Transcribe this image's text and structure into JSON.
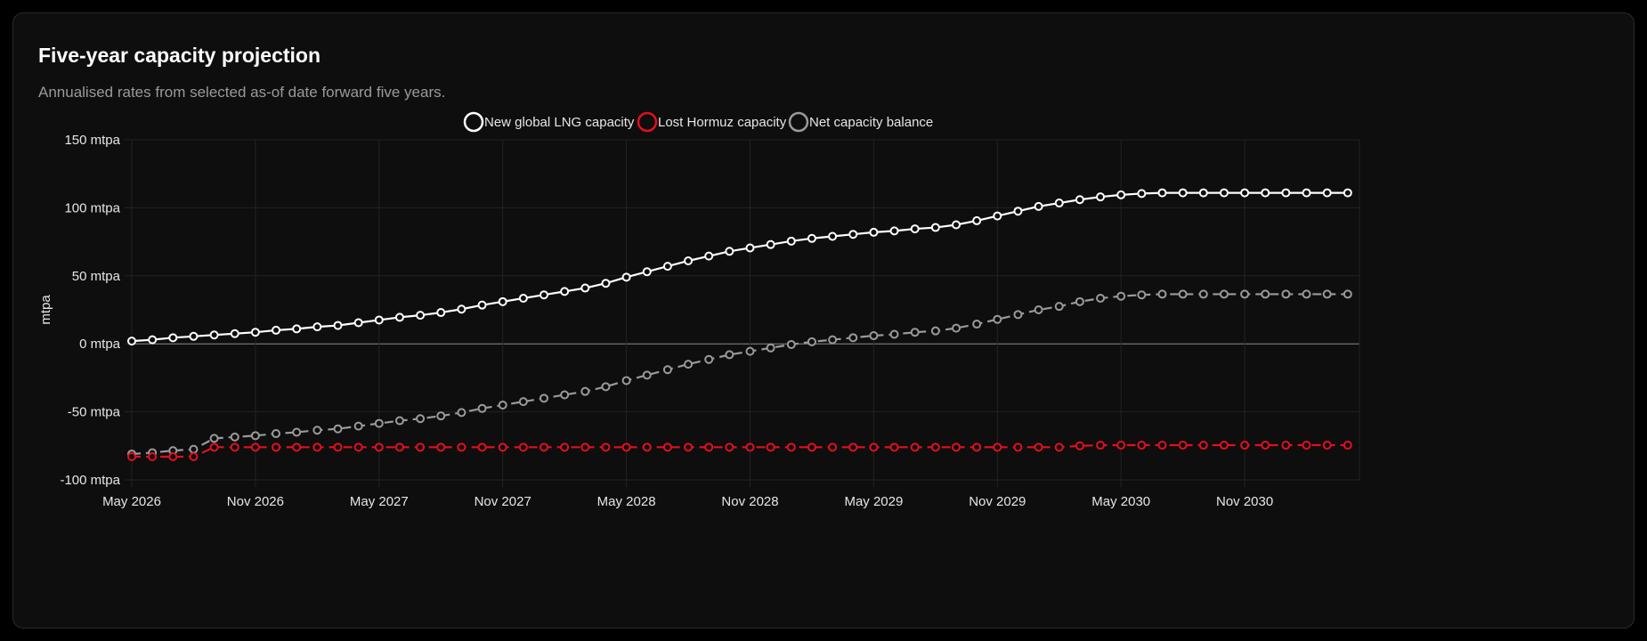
{
  "card": {
    "title": "Five-year capacity projection",
    "subtitle": "Annualised rates from selected as-of date forward five years."
  },
  "colors": {
    "background": "#0e0e0e",
    "grid": "#232323",
    "zero_line": "#8a8a8a",
    "text": "#e6e6e6",
    "new_capacity": "#ffffff",
    "lost_hormuz": "#e0101e",
    "net_balance": "#9a9a9a"
  },
  "chart_data": {
    "type": "line",
    "ylabel": "mtpa",
    "ylim": [
      -100,
      150
    ],
    "yticks": [
      150,
      100,
      50,
      0,
      -50,
      -100
    ],
    "y_unit": "mtpa",
    "x_tick_labels": [
      "May 2026",
      "Nov 2026",
      "May 2027",
      "Nov 2027",
      "May 2028",
      "Nov 2028",
      "May 2029",
      "Nov 2029",
      "May 2030",
      "Nov 2030"
    ],
    "x_tick_month_index": [
      0,
      6,
      12,
      18,
      24,
      30,
      36,
      42,
      48,
      54
    ],
    "x_range_months": [
      0,
      59
    ],
    "legend_position": "top-center",
    "series": [
      {
        "name": "New global LNG capacity",
        "color_key": "new_capacity",
        "dashed": false,
        "values": [
          2,
          3,
          4.5,
          5.5,
          6.5,
          7.5,
          8.5,
          10,
          11,
          12.5,
          13.5,
          15.5,
          17.5,
          19.5,
          21,
          23,
          25.5,
          28.5,
          31,
          33.5,
          36,
          38.5,
          41,
          44.5,
          49,
          53,
          57,
          61,
          64.5,
          68,
          70.5,
          73,
          75.5,
          77.5,
          79,
          80.5,
          82,
          83,
          84.5,
          85.5,
          87.5,
          90.5,
          94,
          97.5,
          101,
          103.5,
          106,
          108,
          109.5,
          110.5,
          111,
          111,
          111,
          111,
          111,
          111,
          111,
          111,
          111,
          111
        ]
      },
      {
        "name": "Lost Hormuz capacity",
        "color_key": "lost_hormuz",
        "dashed": true,
        "values": [
          -83,
          -83,
          -83,
          -83,
          -76,
          -76,
          -76,
          -76,
          -76,
          -76,
          -76,
          -76,
          -76,
          -76,
          -76,
          -76,
          -76,
          -76,
          -76,
          -76,
          -76,
          -76,
          -76,
          -76,
          -76,
          -76,
          -76,
          -76,
          -76,
          -76,
          -76,
          -76,
          -76,
          -76,
          -76,
          -76,
          -76,
          -76,
          -76,
          -76,
          -76,
          -76,
          -76,
          -76,
          -76,
          -76,
          -75,
          -74.5,
          -74.5,
          -74.5,
          -74.5,
          -74.5,
          -74.5,
          -74.5,
          -74.5,
          -74.5,
          -74.5,
          -74.5,
          -74.5,
          -74.5
        ]
      },
      {
        "name": "Net capacity balance",
        "color_key": "net_balance",
        "dashed": true,
        "values": [
          -81,
          -80,
          -78.5,
          -77.5,
          -69.5,
          -68.5,
          -67.5,
          -66,
          -65,
          -63.5,
          -62.5,
          -60.5,
          -58.5,
          -56.5,
          -55,
          -53,
          -50.5,
          -47.5,
          -45,
          -42.5,
          -40,
          -37.5,
          -35,
          -31.5,
          -27,
          -23,
          -19,
          -15,
          -11.5,
          -8,
          -5.5,
          -3,
          -0.5,
          1.5,
          3,
          4.5,
          6,
          7,
          8.5,
          9.5,
          11.5,
          14.5,
          18,
          21.5,
          25,
          27.5,
          31,
          33.5,
          35,
          36,
          36.5,
          36.5,
          36.5,
          36.5,
          36.5,
          36.5,
          36.5,
          36.5,
          36.5,
          36.5
        ]
      }
    ]
  }
}
